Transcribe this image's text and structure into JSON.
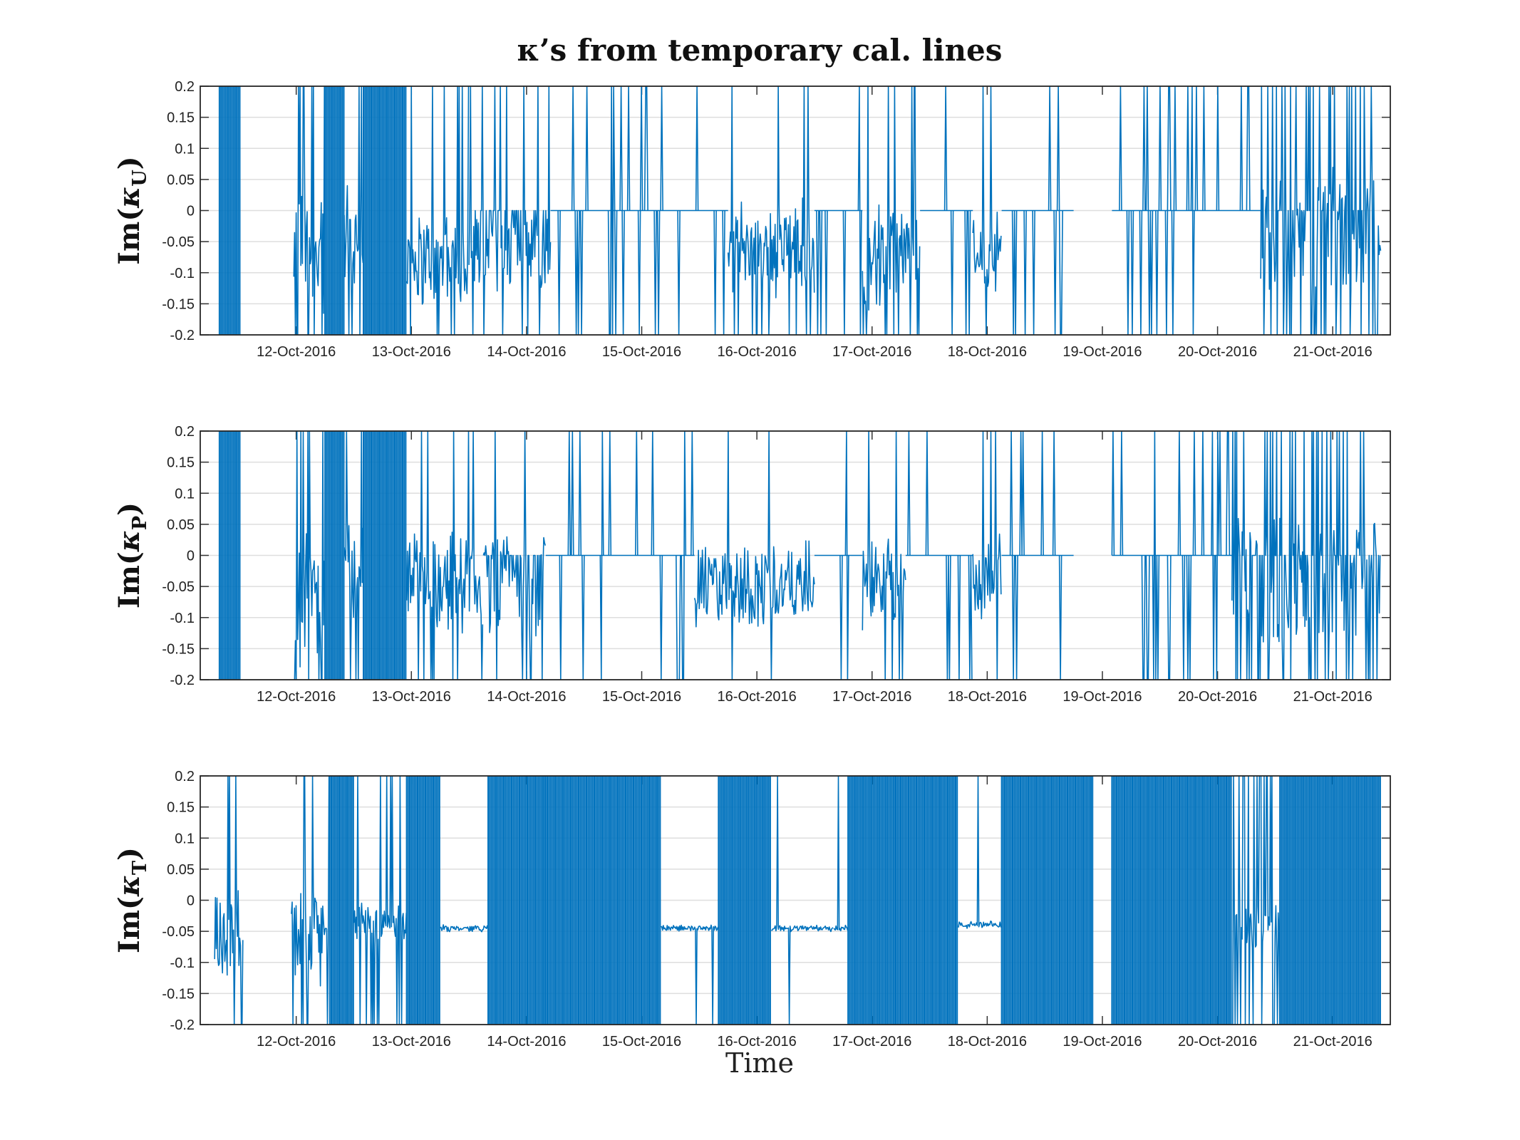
{
  "figure": {
    "title": "κ’s from temporary cal. lines",
    "xlabel": "Time"
  },
  "chart_data": [
    {
      "type": "line",
      "ylabel": {
        "base": "Im(",
        "kappa": "κ",
        "sub": "U",
        "close": ")"
      },
      "ylim": [
        -0.2,
        0.2
      ],
      "yticks": [
        0.2,
        0.15,
        0.1,
        0.05,
        0,
        -0.05,
        -0.1,
        -0.15,
        -0.2
      ],
      "ytick_labels": [
        "0.2",
        "0.15",
        "0.1",
        "0.05",
        "0",
        "-0.05",
        "-0.1",
        "-0.15",
        "-0.2"
      ],
      "xlim": [
        "2016-10-11T04:00",
        "2016-10-21T12:00"
      ],
      "xticks": [
        "2016-10-12",
        "2016-10-13",
        "2016-10-14",
        "2016-10-15",
        "2016-10-16",
        "2016-10-17",
        "2016-10-18",
        "2016-10-19",
        "2016-10-20",
        "2016-10-21"
      ],
      "xtick_labels": [
        "12-Oct-2016",
        "13-Oct-2016",
        "14-Oct-2016",
        "15-Oct-2016",
        "16-Oct-2016",
        "17-Oct-2016",
        "18-Oct-2016",
        "19-Oct-2016",
        "20-Oct-2016",
        "21-Oct-2016"
      ],
      "grid": "y",
      "color": "#0072BD",
      "segments": [
        {
          "start": "2016-10-11T08:00",
          "end": "2016-10-11T12:30",
          "mode": "rail"
        },
        {
          "start": "2016-10-11T23:30",
          "end": "2016-10-12T06:00",
          "mode": "noise",
          "center": -0.07,
          "amp": 0.12,
          "spike_rate": 0.35
        },
        {
          "start": "2016-10-12T06:00",
          "end": "2016-10-12T10:00",
          "mode": "rail"
        },
        {
          "start": "2016-10-12T10:00",
          "end": "2016-10-12T14:00",
          "mode": "noise",
          "center": -0.05,
          "amp": 0.12,
          "spike_rate": 0.3
        },
        {
          "start": "2016-10-12T14:00",
          "end": "2016-10-12T23:00",
          "mode": "rail"
        },
        {
          "start": "2016-10-12T23:00",
          "end": "2016-10-13T12:00",
          "mode": "noise",
          "center": -0.08,
          "amp": 0.09,
          "spike_rate": 0.2
        },
        {
          "start": "2016-10-13T12:00",
          "end": "2016-10-14T05:00",
          "mode": "mixed",
          "center": -0.07,
          "amp": 0.06,
          "spike_rate": 0.12
        },
        {
          "start": "2016-10-14T05:00",
          "end": "2016-10-15T18:00",
          "mode": "sparse",
          "spike_rate": 0.12
        },
        {
          "start": "2016-10-15T18:00",
          "end": "2016-10-16T12:00",
          "mode": "noise",
          "center": -0.06,
          "amp": 0.09,
          "spike_rate": 0.08
        },
        {
          "start": "2016-10-16T12:00",
          "end": "2016-10-16T22:00",
          "mode": "sparse",
          "spike_rate": 0.12
        },
        {
          "start": "2016-10-16T22:00",
          "end": "2016-10-17T10:00",
          "mode": "noise",
          "center": -0.07,
          "amp": 0.1,
          "spike_rate": 0.12
        },
        {
          "start": "2016-10-17T10:00",
          "end": "2016-10-17T21:00",
          "mode": "sparse",
          "spike_rate": 0.14
        },
        {
          "start": "2016-10-17T21:00",
          "end": "2016-10-18T03:00",
          "mode": "noise",
          "center": -0.06,
          "amp": 0.08,
          "spike_rate": 0.12
        },
        {
          "start": "2016-10-18T03:00",
          "end": "2016-10-18T18:00",
          "mode": "sparse",
          "spike_rate": 0.1
        },
        {
          "start": "2016-10-19T02:00",
          "end": "2016-10-20T09:00",
          "mode": "sparse",
          "spike_rate": 0.2
        },
        {
          "start": "2016-10-20T09:00",
          "end": "2016-10-21T10:00",
          "mode": "mixed",
          "center": -0.03,
          "amp": 0.1,
          "spike_rate": 0.3
        }
      ]
    },
    {
      "type": "line",
      "ylabel": {
        "base": "Im(",
        "kappa": "κ",
        "sub": "P",
        "close": ")"
      },
      "ylim": [
        -0.2,
        0.2
      ],
      "yticks": [
        0.2,
        0.15,
        0.1,
        0.05,
        0,
        -0.05,
        -0.1,
        -0.15,
        -0.2
      ],
      "ytick_labels": [
        "0.2",
        "0.15",
        "0.1",
        "0.05",
        "0",
        "-0.05",
        "-0.1",
        "-0.15",
        "-0.2"
      ],
      "xlim": [
        "2016-10-11T04:00",
        "2016-10-21T12:00"
      ],
      "xticks": [
        "2016-10-12",
        "2016-10-13",
        "2016-10-14",
        "2016-10-15",
        "2016-10-16",
        "2016-10-17",
        "2016-10-18",
        "2016-10-19",
        "2016-10-20",
        "2016-10-21"
      ],
      "xtick_labels": [
        "12-Oct-2016",
        "13-Oct-2016",
        "14-Oct-2016",
        "15-Oct-2016",
        "16-Oct-2016",
        "17-Oct-2016",
        "18-Oct-2016",
        "19-Oct-2016",
        "20-Oct-2016",
        "21-Oct-2016"
      ],
      "grid": "y",
      "color": "#0072BD",
      "segments": [
        {
          "start": "2016-10-11T08:00",
          "end": "2016-10-11T12:30",
          "mode": "rail"
        },
        {
          "start": "2016-10-11T23:30",
          "end": "2016-10-12T06:00",
          "mode": "noise",
          "center": -0.06,
          "amp": 0.13,
          "spike_rate": 0.3
        },
        {
          "start": "2016-10-12T06:00",
          "end": "2016-10-12T10:00",
          "mode": "rail"
        },
        {
          "start": "2016-10-12T10:00",
          "end": "2016-10-12T14:00",
          "mode": "noise",
          "center": -0.04,
          "amp": 0.13,
          "spike_rate": 0.25
        },
        {
          "start": "2016-10-12T14:00",
          "end": "2016-10-12T23:00",
          "mode": "rail"
        },
        {
          "start": "2016-10-12T23:00",
          "end": "2016-10-13T15:00",
          "mode": "noise",
          "center": -0.04,
          "amp": 0.09,
          "spike_rate": 0.15
        },
        {
          "start": "2016-10-13T15:00",
          "end": "2016-10-14T04:00",
          "mode": "mixed",
          "center": -0.05,
          "amp": 0.08,
          "spike_rate": 0.12
        },
        {
          "start": "2016-10-14T04:00",
          "end": "2016-10-15T11:00",
          "mode": "sparse",
          "spike_rate": 0.1
        },
        {
          "start": "2016-10-15T11:00",
          "end": "2016-10-16T12:00",
          "mode": "noise",
          "center": -0.05,
          "amp": 0.08,
          "spike_rate": 0.05
        },
        {
          "start": "2016-10-16T12:00",
          "end": "2016-10-16T22:00",
          "mode": "sparse",
          "spike_rate": 0.1
        },
        {
          "start": "2016-10-16T22:00",
          "end": "2016-10-17T07:00",
          "mode": "noise",
          "center": -0.04,
          "amp": 0.09,
          "spike_rate": 0.1
        },
        {
          "start": "2016-10-17T07:00",
          "end": "2016-10-17T21:00",
          "mode": "sparse",
          "spike_rate": 0.12
        },
        {
          "start": "2016-10-17T21:00",
          "end": "2016-10-18T03:00",
          "mode": "noise",
          "center": -0.04,
          "amp": 0.08,
          "spike_rate": 0.1
        },
        {
          "start": "2016-10-18T03:00",
          "end": "2016-10-18T18:00",
          "mode": "sparse",
          "spike_rate": 0.1
        },
        {
          "start": "2016-10-19T02:00",
          "end": "2016-10-20T03:00",
          "mode": "sparse",
          "spike_rate": 0.2
        },
        {
          "start": "2016-10-20T03:00",
          "end": "2016-10-21T10:00",
          "mode": "mixed",
          "center": -0.04,
          "amp": 0.1,
          "spike_rate": 0.3
        }
      ]
    },
    {
      "type": "line",
      "ylabel": {
        "base": "Im(",
        "kappa": "κ",
        "sub": "T",
        "close": ")"
      },
      "ylim": [
        -0.2,
        0.2
      ],
      "yticks": [
        0.2,
        0.15,
        0.1,
        0.05,
        0,
        -0.05,
        -0.1,
        -0.15,
        -0.2
      ],
      "ytick_labels": [
        "0.2",
        "0.15",
        "0.1",
        "0.05",
        "0",
        "-0.05",
        "-0.1",
        "-0.15",
        "-0.2"
      ],
      "xlim": [
        "2016-10-11T04:00",
        "2016-10-21T12:00"
      ],
      "xticks": [
        "2016-10-12",
        "2016-10-13",
        "2016-10-14",
        "2016-10-15",
        "2016-10-16",
        "2016-10-17",
        "2016-10-18",
        "2016-10-19",
        "2016-10-20",
        "2016-10-21"
      ],
      "xtick_labels": [
        "12-Oct-2016",
        "13-Oct-2016",
        "14-Oct-2016",
        "15-Oct-2016",
        "16-Oct-2016",
        "17-Oct-2016",
        "18-Oct-2016",
        "19-Oct-2016",
        "20-Oct-2016",
        "21-Oct-2016"
      ],
      "grid": "y",
      "color": "#0072BD",
      "segments": [
        {
          "start": "2016-10-11T07:00",
          "end": "2016-10-11T13:00",
          "mode": "noise",
          "center": -0.05,
          "amp": 0.09,
          "spike_rate": 0.25
        },
        {
          "start": "2016-10-11T23:00",
          "end": "2016-10-12T07:00",
          "mode": "noise",
          "center": -0.04,
          "amp": 0.1,
          "spike_rate": 0.2
        },
        {
          "start": "2016-10-12T07:00",
          "end": "2016-10-12T12:00",
          "mode": "rail"
        },
        {
          "start": "2016-10-12T12:00",
          "end": "2016-10-12T23:00",
          "mode": "noise",
          "center": -0.04,
          "amp": 0.04,
          "spike_rate": 0.25
        },
        {
          "start": "2016-10-12T23:00",
          "end": "2016-10-13T06:00",
          "mode": "rail"
        },
        {
          "start": "2016-10-13T06:00",
          "end": "2016-10-13T16:00",
          "mode": "noise",
          "center": -0.045,
          "amp": 0.006,
          "spike_rate": 0.0
        },
        {
          "start": "2016-10-13T16:00",
          "end": "2016-10-14T04:00",
          "mode": "rail"
        },
        {
          "start": "2016-10-14T04:00",
          "end": "2016-10-15T04:00",
          "mode": "rail"
        },
        {
          "start": "2016-10-15T04:00",
          "end": "2016-10-15T16:00",
          "mode": "noise",
          "center": -0.045,
          "amp": 0.006,
          "spike_rate": 0.04
        },
        {
          "start": "2016-10-15T16:00",
          "end": "2016-10-16T03:00",
          "mode": "rail"
        },
        {
          "start": "2016-10-16T03:00",
          "end": "2016-10-16T16:00",
          "mode": "noise",
          "center": -0.045,
          "amp": 0.006,
          "spike_rate": 0.02
        },
        {
          "start": "2016-10-16T16:00",
          "end": "2016-10-16T19:00",
          "mode": "noise",
          "center": -0.045,
          "amp": 0.006,
          "spike_rate": 0.05
        },
        {
          "start": "2016-10-16T19:00",
          "end": "2016-10-17T05:00",
          "mode": "rail"
        },
        {
          "start": "2016-10-17T05:00",
          "end": "2016-10-17T18:00",
          "mode": "rail"
        },
        {
          "start": "2016-10-17T18:00",
          "end": "2016-10-18T03:00",
          "mode": "noise",
          "center": -0.04,
          "amp": 0.007,
          "spike_rate": 0.05
        },
        {
          "start": "2016-10-18T03:00",
          "end": "2016-10-18T22:00",
          "mode": "rail"
        },
        {
          "start": "2016-10-19T02:00",
          "end": "2016-10-20T03:00",
          "mode": "rail"
        },
        {
          "start": "2016-10-20T03:00",
          "end": "2016-10-20T13:00",
          "mode": "noise",
          "center": -0.04,
          "amp": 0.04,
          "spike_rate": 0.3
        },
        {
          "start": "2016-10-20T13:00",
          "end": "2016-10-21T10:00",
          "mode": "rail"
        }
      ]
    }
  ]
}
